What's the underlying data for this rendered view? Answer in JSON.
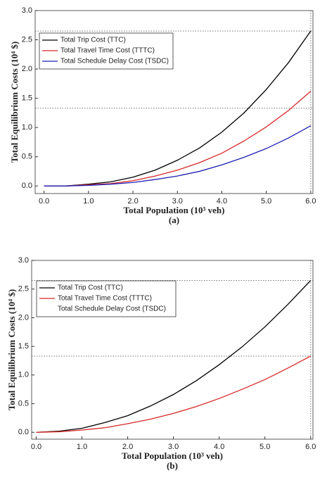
{
  "chart_data": [
    {
      "type": "line",
      "title": "(a)",
      "x_label": "Total Population (10³ veh)",
      "y_label": "Total Equilibrium Costs (10⁴ $)",
      "x": [
        0,
        0.5,
        1,
        1.5,
        2,
        2.5,
        3,
        3.5,
        4,
        4.5,
        5,
        5.5,
        6
      ],
      "series": [
        {
          "name": "Total Trip Cost (TTC)",
          "color": "#000000",
          "values": [
            0,
            0.0,
            0.03,
            0.07,
            0.15,
            0.27,
            0.44,
            0.65,
            0.92,
            1.25,
            1.65,
            2.11,
            2.65
          ]
        },
        {
          "name": "Total Travel Time Cost (TTTC)",
          "color": "#d62728",
          "values": [
            0,
            0.0,
            0.02,
            0.04,
            0.09,
            0.17,
            0.27,
            0.4,
            0.56,
            0.77,
            1.01,
            1.29,
            1.62
          ]
        },
        {
          "name": "Total Schedule Delay Cost (TSDC)",
          "color": "#1f1fb4",
          "values": [
            0,
            0.0,
            0.01,
            0.03,
            0.06,
            0.11,
            0.17,
            0.25,
            0.36,
            0.49,
            0.64,
            0.82,
            1.03
          ]
        }
      ],
      "xlim": [
        -0.2,
        6.05
      ],
      "ylim": [
        -0.13,
        3.0
      ],
      "xticks": [
        {
          "value": 0,
          "label": "0.0"
        },
        {
          "value": 1,
          "label": "1.0"
        },
        {
          "value": 2,
          "label": "2.0"
        },
        {
          "value": 3,
          "label": "3.0"
        },
        {
          "value": 4,
          "label": "4.0"
        },
        {
          "value": 5,
          "label": "5.0"
        },
        {
          "value": 6,
          "label": "6.0"
        }
      ],
      "yticks": [
        {
          "value": 0,
          "label": "0.0"
        },
        {
          "value": 0.5,
          "label": "0.5"
        },
        {
          "value": 1,
          "label": "1.0"
        },
        {
          "value": 1.5,
          "label": "1.5"
        },
        {
          "value": 2,
          "label": "2.0"
        },
        {
          "value": 2.5,
          "label": "2.5"
        },
        {
          "value": 3,
          "label": "3.0"
        }
      ],
      "hlines": [
        2.65,
        1.33
      ],
      "vlines": [
        6
      ],
      "legend": "upper left"
    },
    {
      "type": "line",
      "title": "(b)",
      "x_label": "Total Population (10³ veh)",
      "y_label": "Total Equilibrium Costs (10⁴ $)",
      "x": [
        0,
        0.5,
        1,
        1.5,
        2,
        2.5,
        3,
        3.5,
        4,
        4.5,
        5,
        5.5,
        6
      ],
      "series": [
        {
          "name": "Total Trip Cost (TTC)",
          "color": "#000000",
          "values": [
            0,
            0.02,
            0.07,
            0.17,
            0.29,
            0.46,
            0.66,
            0.9,
            1.18,
            1.49,
            1.84,
            2.23,
            2.65
          ]
        },
        {
          "name": "Total Travel Time Cost (TTTC)",
          "color": "#d62728",
          "values": [
            0,
            0.01,
            0.04,
            0.08,
            0.15,
            0.23,
            0.33,
            0.45,
            0.59,
            0.75,
            0.92,
            1.12,
            1.33
          ]
        },
        {
          "name": "Total Schedule Delay Cost (TSDC)",
          "color": null,
          "values": [
            null,
            null,
            null,
            null,
            null,
            null,
            null,
            null,
            null,
            null,
            null,
            null,
            null
          ]
        }
      ],
      "xlim": [
        -0.1,
        6.05
      ],
      "ylim": [
        -0.12,
        3.0
      ],
      "xticks": [
        {
          "value": 0,
          "label": "0.0"
        },
        {
          "value": 1,
          "label": "1.0"
        },
        {
          "value": 2,
          "label": "2.0"
        },
        {
          "value": 3,
          "label": "3.0"
        },
        {
          "value": 4,
          "label": "4.0"
        },
        {
          "value": 5,
          "label": "5.0"
        },
        {
          "value": 6,
          "label": "6.0"
        }
      ],
      "yticks": [
        {
          "value": 0,
          "label": "0.0"
        },
        {
          "value": 0.5,
          "label": "0.5"
        },
        {
          "value": 1,
          "label": "1.0"
        },
        {
          "value": 1.5,
          "label": "1.5"
        },
        {
          "value": 2,
          "label": "2.0"
        },
        {
          "value": 2.5,
          "label": "2.5"
        },
        {
          "value": 3,
          "label": "3.0"
        }
      ],
      "hlines": [
        2.65,
        1.33
      ],
      "vlines": [
        6
      ],
      "legend": "upper left"
    }
  ]
}
